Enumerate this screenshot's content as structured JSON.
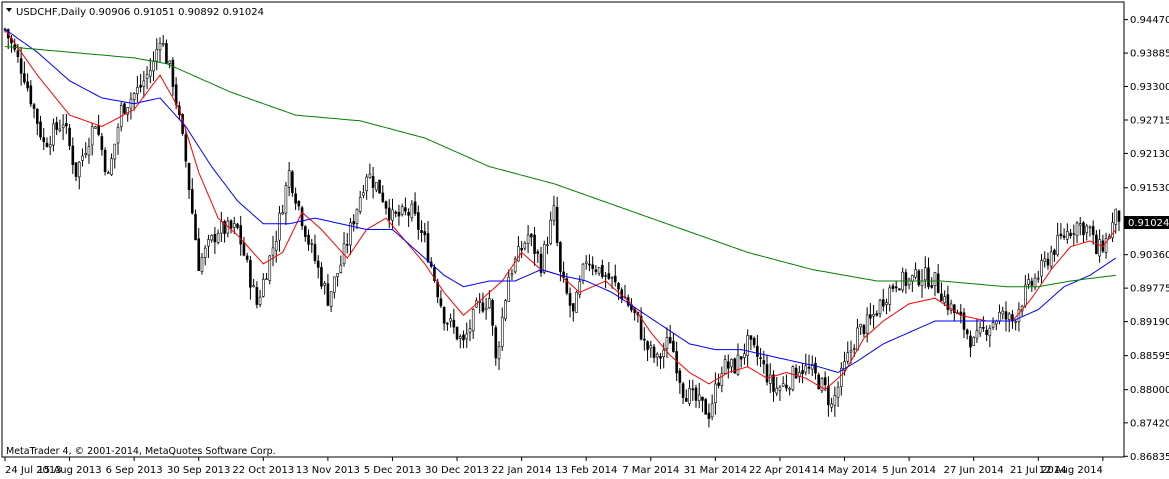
{
  "header": {
    "symbol_label": "USDCHF,Daily",
    "ohlc": "0.90906 0.91051 0.90892 0.91024",
    "menu_icon": "triangle-down-icon"
  },
  "footer": {
    "copyright": "MetaTrader 4, © 2001-2014, MetaQuotes Software Corp."
  },
  "colors": {
    "background": "#ffffff",
    "candle": "#000000",
    "ma_fast": "#ff0000",
    "ma_mid": "#0000ff",
    "ma_slow": "#008000",
    "axis": "#000000"
  },
  "chart_data": {
    "type": "candlestick",
    "title": "USDCHF,Daily",
    "ylim": [
      0.8684,
      0.9476
    ],
    "current_price": "0.91024",
    "y_ticks": [
      "0.94470",
      "0.93885",
      "0.93300",
      "0.92715",
      "0.92130",
      "0.91530",
      "0.90360",
      "0.89775",
      "0.89190",
      "0.88595",
      "0.88000",
      "0.87420",
      "0.86835"
    ],
    "x_ticks": [
      "24 Jul 2013",
      "15 Aug 2013",
      "6 Sep 2013",
      "30 Sep 2013",
      "22 Oct 2013",
      "13 Nov 2013",
      "5 Dec 2013",
      "30 Dec 2013",
      "22 Jan 2014",
      "13 Feb 2014",
      "7 Mar 2014",
      "31 Mar 2014",
      "22 Apr 2014",
      "14 May 2014",
      "5 Jun 2014",
      "27 Jun 2014",
      "21 Jul 2014",
      "12 Aug 2014"
    ],
    "grid": false,
    "close_series": [
      [
        0,
        0.943
      ],
      [
        6,
        0.935
      ],
      [
        12,
        0.923
      ],
      [
        18,
        0.927
      ],
      [
        22,
        0.918
      ],
      [
        28,
        0.927
      ],
      [
        32,
        0.917
      ],
      [
        36,
        0.929
      ],
      [
        42,
        0.933
      ],
      [
        46,
        0.937
      ],
      [
        48,
        0.942
      ],
      [
        52,
        0.934
      ],
      [
        56,
        0.92
      ],
      [
        60,
        0.902
      ],
      [
        66,
        0.908
      ],
      [
        72,
        0.908
      ],
      [
        78,
        0.895
      ],
      [
        84,
        0.907
      ],
      [
        88,
        0.918
      ],
      [
        94,
        0.906
      ],
      [
        100,
        0.896
      ],
      [
        104,
        0.902
      ],
      [
        108,
        0.91
      ],
      [
        112,
        0.918
      ],
      [
        116,
        0.915
      ],
      [
        120,
        0.91
      ],
      [
        126,
        0.911
      ],
      [
        130,
        0.906
      ],
      [
        136,
        0.893
      ],
      [
        142,
        0.888
      ],
      [
        146,
        0.894
      ],
      [
        150,
        0.896
      ],
      [
        152,
        0.885
      ],
      [
        156,
        0.9
      ],
      [
        162,
        0.907
      ],
      [
        166,
        0.902
      ],
      [
        170,
        0.911
      ],
      [
        172,
        0.9
      ],
      [
        176,
        0.893
      ],
      [
        180,
        0.903
      ],
      [
        184,
        0.901
      ],
      [
        188,
        0.899
      ],
      [
        192,
        0.896
      ],
      [
        196,
        0.892
      ],
      [
        198,
        0.888
      ],
      [
        202,
        0.885
      ],
      [
        206,
        0.889
      ],
      [
        210,
        0.88
      ],
      [
        214,
        0.878
      ],
      [
        218,
        0.876
      ],
      [
        222,
        0.884
      ],
      [
        226,
        0.884
      ],
      [
        230,
        0.888
      ],
      [
        234,
        0.885
      ],
      [
        238,
        0.88
      ],
      [
        242,
        0.881
      ],
      [
        246,
        0.884
      ],
      [
        250,
        0.883
      ],
      [
        254,
        0.88
      ],
      [
        256,
        0.877
      ],
      [
        260,
        0.884
      ],
      [
        264,
        0.89
      ],
      [
        268,
        0.892
      ],
      [
        272,
        0.896
      ],
      [
        276,
        0.899
      ],
      [
        280,
        0.899
      ],
      [
        284,
        0.9
      ],
      [
        288,
        0.899
      ],
      [
        292,
        0.895
      ],
      [
        296,
        0.892
      ],
      [
        300,
        0.888
      ],
      [
        304,
        0.891
      ],
      [
        308,
        0.893
      ],
      [
        312,
        0.892
      ],
      [
        316,
        0.897
      ],
      [
        320,
        0.9
      ],
      [
        324,
        0.904
      ],
      [
        328,
        0.907
      ],
      [
        332,
        0.909
      ],
      [
        336,
        0.908
      ],
      [
        338,
        0.904
      ],
      [
        341,
        0.906
      ],
      [
        344,
        0.9102
      ]
    ],
    "series": [
      {
        "color": "#ff0000",
        "points": [
          [
            0,
            0.943
          ],
          [
            10,
            0.935
          ],
          [
            20,
            0.928
          ],
          [
            30,
            0.926
          ],
          [
            40,
            0.929
          ],
          [
            48,
            0.935
          ],
          [
            54,
            0.929
          ],
          [
            60,
            0.918
          ],
          [
            66,
            0.91
          ],
          [
            72,
            0.907
          ],
          [
            80,
            0.902
          ],
          [
            86,
            0.904
          ],
          [
            92,
            0.911
          ],
          [
            98,
            0.908
          ],
          [
            106,
            0.903
          ],
          [
            112,
            0.908
          ],
          [
            118,
            0.91
          ],
          [
            124,
            0.906
          ],
          [
            130,
            0.902
          ],
          [
            136,
            0.897
          ],
          [
            142,
            0.893
          ],
          [
            148,
            0.896
          ],
          [
            154,
            0.899
          ],
          [
            160,
            0.904
          ],
          [
            166,
            0.901
          ],
          [
            172,
            0.9
          ],
          [
            178,
            0.897
          ],
          [
            186,
            0.899
          ],
          [
            194,
            0.895
          ],
          [
            200,
            0.89
          ],
          [
            206,
            0.886
          ],
          [
            212,
            0.883
          ],
          [
            218,
            0.881
          ],
          [
            224,
            0.883
          ],
          [
            230,
            0.884
          ],
          [
            236,
            0.882
          ],
          [
            242,
            0.883
          ],
          [
            248,
            0.882
          ],
          [
            254,
            0.88
          ],
          [
            260,
            0.883
          ],
          [
            266,
            0.889
          ],
          [
            272,
            0.892
          ],
          [
            280,
            0.895
          ],
          [
            288,
            0.896
          ],
          [
            296,
            0.893
          ],
          [
            304,
            0.892
          ],
          [
            312,
            0.892
          ],
          [
            318,
            0.896
          ],
          [
            324,
            0.901
          ],
          [
            330,
            0.905
          ],
          [
            336,
            0.906
          ],
          [
            340,
            0.905
          ],
          [
            344,
            0.908
          ]
        ]
      },
      {
        "color": "#0000ff",
        "points": [
          [
            0,
            0.943
          ],
          [
            10,
            0.939
          ],
          [
            20,
            0.934
          ],
          [
            30,
            0.931
          ],
          [
            40,
            0.93
          ],
          [
            48,
            0.931
          ],
          [
            56,
            0.926
          ],
          [
            64,
            0.919
          ],
          [
            72,
            0.913
          ],
          [
            80,
            0.909
          ],
          [
            88,
            0.909
          ],
          [
            96,
            0.91
          ],
          [
            104,
            0.909
          ],
          [
            112,
            0.908
          ],
          [
            120,
            0.908
          ],
          [
            128,
            0.904
          ],
          [
            136,
            0.9
          ],
          [
            142,
            0.898
          ],
          [
            150,
            0.899
          ],
          [
            158,
            0.899
          ],
          [
            166,
            0.901
          ],
          [
            172,
            0.9
          ],
          [
            180,
            0.899
          ],
          [
            188,
            0.897
          ],
          [
            196,
            0.894
          ],
          [
            204,
            0.891
          ],
          [
            212,
            0.888
          ],
          [
            220,
            0.887
          ],
          [
            228,
            0.887
          ],
          [
            236,
            0.886
          ],
          [
            244,
            0.885
          ],
          [
            252,
            0.884
          ],
          [
            258,
            0.883
          ],
          [
            264,
            0.885
          ],
          [
            272,
            0.888
          ],
          [
            280,
            0.89
          ],
          [
            288,
            0.892
          ],
          [
            296,
            0.892
          ],
          [
            304,
            0.892
          ],
          [
            312,
            0.892
          ],
          [
            320,
            0.894
          ],
          [
            328,
            0.898
          ],
          [
            336,
            0.9
          ],
          [
            344,
            0.903
          ]
        ]
      },
      {
        "color": "#008000",
        "points": [
          [
            0,
            0.94
          ],
          [
            20,
            0.939
          ],
          [
            40,
            0.938
          ],
          [
            50,
            0.937
          ],
          [
            70,
            0.932
          ],
          [
            90,
            0.928
          ],
          [
            110,
            0.927
          ],
          [
            130,
            0.924
          ],
          [
            150,
            0.919
          ],
          [
            170,
            0.916
          ],
          [
            190,
            0.912
          ],
          [
            210,
            0.908
          ],
          [
            230,
            0.904
          ],
          [
            250,
            0.901
          ],
          [
            270,
            0.899
          ],
          [
            290,
            0.899
          ],
          [
            300,
            0.8985
          ],
          [
            310,
            0.898
          ],
          [
            320,
            0.898
          ],
          [
            330,
            0.899
          ],
          [
            344,
            0.9
          ]
        ]
      }
    ]
  }
}
